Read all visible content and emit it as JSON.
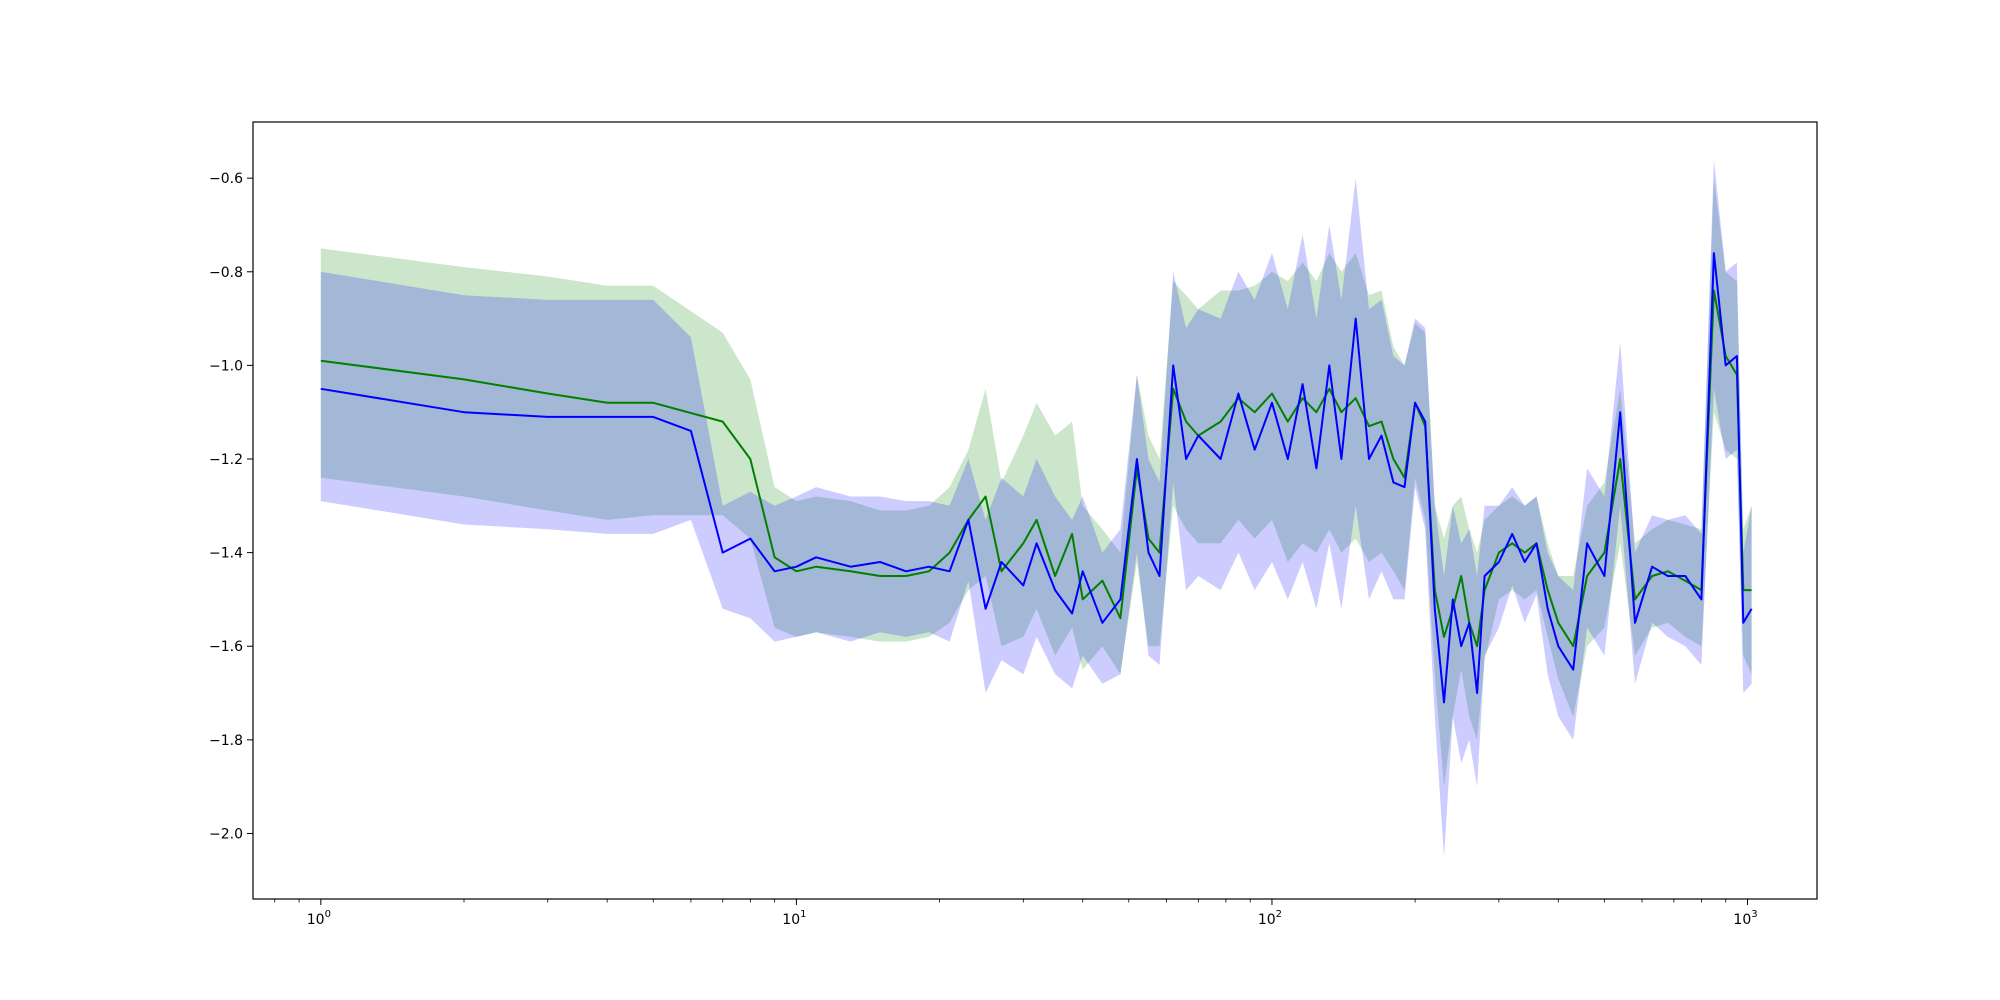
{
  "chart_data": {
    "type": "line",
    "title": "",
    "xlabel": "",
    "ylabel": "",
    "x_scale": "log",
    "xlim": [
      0.72,
      1400
    ],
    "ylim": [
      -2.14,
      -0.48
    ],
    "grid": false,
    "x_ticks": [
      {
        "value": 1,
        "label_base": "10",
        "label_exp": "0"
      },
      {
        "value": 10,
        "label_base": "10",
        "label_exp": "1"
      },
      {
        "value": 100,
        "label_base": "10",
        "label_exp": "2"
      },
      {
        "value": 1000,
        "label_base": "10",
        "label_exp": "3"
      }
    ],
    "y_ticks": [
      {
        "value": -0.6,
        "label": "−0.6"
      },
      {
        "value": -0.8,
        "label": "−0.8"
      },
      {
        "value": -1.0,
        "label": "−1.0"
      },
      {
        "value": -1.2,
        "label": "−1.2"
      },
      {
        "value": -1.4,
        "label": "−1.4"
      },
      {
        "value": -1.6,
        "label": "−1.6"
      },
      {
        "value": -1.8,
        "label": "−1.8"
      },
      {
        "value": -2.0,
        "label": "−2.0"
      }
    ],
    "series": [
      {
        "color": "#008000",
        "band_color": "#008000",
        "points": [
          [
            1,
            -0.99,
            -0.75,
            -1.24
          ],
          [
            2,
            -1.03,
            -0.79,
            -1.28
          ],
          [
            3,
            -1.06,
            -0.81,
            -1.31
          ],
          [
            4,
            -1.08,
            -0.83,
            -1.33
          ],
          [
            5,
            -1.08,
            -0.83,
            -1.32
          ],
          [
            7,
            -1.12,
            -0.93,
            -1.32
          ],
          [
            8,
            -1.2,
            -1.03,
            -1.37
          ],
          [
            9,
            -1.41,
            -1.26,
            -1.56
          ],
          [
            10,
            -1.44,
            -1.29,
            -1.58
          ],
          [
            11,
            -1.43,
            -1.28,
            -1.57
          ],
          [
            13,
            -1.44,
            -1.29,
            -1.58
          ],
          [
            15,
            -1.45,
            -1.31,
            -1.59
          ],
          [
            17,
            -1.45,
            -1.31,
            -1.59
          ],
          [
            19,
            -1.44,
            -1.3,
            -1.58
          ],
          [
            21,
            -1.4,
            -1.26,
            -1.55
          ],
          [
            23,
            -1.33,
            -1.18,
            -1.48
          ],
          [
            25,
            -1.28,
            -1.05,
            -1.45
          ],
          [
            27,
            -1.44,
            -1.25,
            -1.6
          ],
          [
            30,
            -1.38,
            -1.15,
            -1.58
          ],
          [
            32,
            -1.33,
            -1.08,
            -1.52
          ],
          [
            35,
            -1.45,
            -1.15,
            -1.62
          ],
          [
            38,
            -1.36,
            -1.12,
            -1.56
          ],
          [
            40,
            -1.5,
            -1.3,
            -1.65
          ],
          [
            44,
            -1.46,
            -1.35,
            -1.6
          ],
          [
            48,
            -1.54,
            -1.4,
            -1.66
          ],
          [
            52,
            -1.22,
            -1.02,
            -1.42
          ],
          [
            55,
            -1.37,
            -1.15,
            -1.6
          ],
          [
            58,
            -1.4,
            -1.2,
            -1.6
          ],
          [
            62,
            -1.05,
            -0.82,
            -1.3
          ],
          [
            66,
            -1.12,
            -0.85,
            -1.35
          ],
          [
            70,
            -1.15,
            -0.88,
            -1.38
          ],
          [
            78,
            -1.12,
            -0.84,
            -1.38
          ],
          [
            85,
            -1.07,
            -0.84,
            -1.33
          ],
          [
            92,
            -1.1,
            -0.83,
            -1.37
          ],
          [
            100,
            -1.06,
            -0.8,
            -1.33
          ],
          [
            108,
            -1.12,
            -0.82,
            -1.42
          ],
          [
            116,
            -1.07,
            -0.78,
            -1.38
          ],
          [
            124,
            -1.1,
            -0.82,
            -1.4
          ],
          [
            132,
            -1.05,
            -0.76,
            -1.35
          ],
          [
            140,
            -1.1,
            -0.8,
            -1.4
          ],
          [
            150,
            -1.07,
            -0.76,
            -1.37
          ],
          [
            160,
            -1.13,
            -0.85,
            -1.42
          ],
          [
            170,
            -1.12,
            -0.84,
            -1.4
          ],
          [
            180,
            -1.2,
            -0.96,
            -1.44
          ],
          [
            190,
            -1.24,
            -1.0,
            -1.48
          ],
          [
            200,
            -1.08,
            -0.91,
            -1.24
          ],
          [
            210,
            -1.13,
            -0.93,
            -1.33
          ],
          [
            220,
            -1.48,
            -1.3,
            -1.66
          ],
          [
            230,
            -1.58,
            -1.37,
            -1.9
          ],
          [
            240,
            -1.52,
            -1.3,
            -1.75
          ],
          [
            250,
            -1.45,
            -1.28,
            -1.65
          ],
          [
            260,
            -1.55,
            -1.35,
            -1.75
          ],
          [
            270,
            -1.6,
            -1.4,
            -1.8
          ],
          [
            280,
            -1.48,
            -1.33,
            -1.63
          ],
          [
            300,
            -1.4,
            -1.3,
            -1.5
          ],
          [
            320,
            -1.38,
            -1.28,
            -1.48
          ],
          [
            340,
            -1.4,
            -1.3,
            -1.5
          ],
          [
            360,
            -1.38,
            -1.28,
            -1.48
          ],
          [
            380,
            -1.48,
            -1.38,
            -1.58
          ],
          [
            400,
            -1.55,
            -1.45,
            -1.67
          ],
          [
            430,
            -1.6,
            -1.45,
            -1.75
          ],
          [
            460,
            -1.45,
            -1.3,
            -1.6
          ],
          [
            500,
            -1.4,
            -1.25,
            -1.56
          ],
          [
            540,
            -1.2,
            -1.05,
            -1.38
          ],
          [
            580,
            -1.5,
            -1.38,
            -1.62
          ],
          [
            630,
            -1.45,
            -1.35,
            -1.56
          ],
          [
            680,
            -1.44,
            -1.33,
            -1.55
          ],
          [
            740,
            -1.46,
            -1.34,
            -1.58
          ],
          [
            800,
            -1.48,
            -1.35,
            -1.6
          ],
          [
            850,
            -0.84,
            -0.6,
            -1.1
          ],
          [
            900,
            -0.98,
            -0.8,
            -1.18
          ],
          [
            950,
            -1.02,
            -0.82,
            -1.2
          ],
          [
            980,
            -1.48,
            -1.35,
            -1.62
          ],
          [
            1020,
            -1.48,
            -1.3,
            -1.66
          ]
        ]
      },
      {
        "color": "#0000ff",
        "band_color": "#0000ff",
        "points": [
          [
            1,
            -1.05,
            -0.8,
            -1.29
          ],
          [
            2,
            -1.1,
            -0.85,
            -1.34
          ],
          [
            3,
            -1.11,
            -0.86,
            -1.35
          ],
          [
            4,
            -1.11,
            -0.86,
            -1.36
          ],
          [
            5,
            -1.11,
            -0.86,
            -1.36
          ],
          [
            6,
            -1.14,
            -0.94,
            -1.33
          ],
          [
            7,
            -1.4,
            -1.3,
            -1.52
          ],
          [
            8,
            -1.37,
            -1.27,
            -1.54
          ],
          [
            9,
            -1.44,
            -1.3,
            -1.59
          ],
          [
            10,
            -1.43,
            -1.28,
            -1.58
          ],
          [
            11,
            -1.41,
            -1.26,
            -1.57
          ],
          [
            13,
            -1.43,
            -1.28,
            -1.59
          ],
          [
            15,
            -1.42,
            -1.28,
            -1.57
          ],
          [
            17,
            -1.44,
            -1.29,
            -1.58
          ],
          [
            19,
            -1.43,
            -1.29,
            -1.57
          ],
          [
            21,
            -1.44,
            -1.3,
            -1.59
          ],
          [
            23,
            -1.33,
            -1.2,
            -1.46
          ],
          [
            25,
            -1.52,
            -1.33,
            -1.7
          ],
          [
            27,
            -1.42,
            -1.24,
            -1.63
          ],
          [
            30,
            -1.47,
            -1.28,
            -1.66
          ],
          [
            32,
            -1.38,
            -1.2,
            -1.58
          ],
          [
            35,
            -1.48,
            -1.28,
            -1.66
          ],
          [
            38,
            -1.53,
            -1.33,
            -1.69
          ],
          [
            40,
            -1.44,
            -1.28,
            -1.62
          ],
          [
            44,
            -1.55,
            -1.4,
            -1.68
          ],
          [
            48,
            -1.5,
            -1.35,
            -1.66
          ],
          [
            52,
            -1.2,
            -1.02,
            -1.4
          ],
          [
            55,
            -1.4,
            -1.2,
            -1.62
          ],
          [
            58,
            -1.45,
            -1.25,
            -1.64
          ],
          [
            62,
            -1.0,
            -0.8,
            -1.25
          ],
          [
            66,
            -1.2,
            -0.92,
            -1.48
          ],
          [
            70,
            -1.15,
            -0.88,
            -1.45
          ],
          [
            78,
            -1.2,
            -0.9,
            -1.48
          ],
          [
            85,
            -1.06,
            -0.8,
            -1.4
          ],
          [
            92,
            -1.18,
            -0.86,
            -1.48
          ],
          [
            100,
            -1.08,
            -0.76,
            -1.42
          ],
          [
            108,
            -1.2,
            -0.88,
            -1.5
          ],
          [
            116,
            -1.04,
            -0.72,
            -1.42
          ],
          [
            124,
            -1.22,
            -0.9,
            -1.52
          ],
          [
            132,
            -1.0,
            -0.7,
            -1.38
          ],
          [
            140,
            -1.2,
            -0.86,
            -1.52
          ],
          [
            150,
            -0.9,
            -0.6,
            -1.3
          ],
          [
            160,
            -1.2,
            -0.88,
            -1.5
          ],
          [
            170,
            -1.15,
            -0.86,
            -1.44
          ],
          [
            180,
            -1.25,
            -0.98,
            -1.5
          ],
          [
            190,
            -1.26,
            -1.0,
            -1.5
          ],
          [
            200,
            -1.08,
            -0.9,
            -1.26
          ],
          [
            210,
            -1.12,
            -0.92,
            -1.35
          ],
          [
            220,
            -1.52,
            -1.3,
            -1.75
          ],
          [
            230,
            -1.72,
            -1.45,
            -2.05
          ],
          [
            240,
            -1.5,
            -1.3,
            -1.75
          ],
          [
            250,
            -1.6,
            -1.38,
            -1.85
          ],
          [
            260,
            -1.55,
            -1.35,
            -1.8
          ],
          [
            270,
            -1.7,
            -1.45,
            -1.9
          ],
          [
            280,
            -1.45,
            -1.3,
            -1.62
          ],
          [
            300,
            -1.42,
            -1.3,
            -1.56
          ],
          [
            320,
            -1.36,
            -1.26,
            -1.47
          ],
          [
            340,
            -1.42,
            -1.3,
            -1.55
          ],
          [
            360,
            -1.38,
            -1.28,
            -1.49
          ],
          [
            380,
            -1.52,
            -1.4,
            -1.66
          ],
          [
            400,
            -1.6,
            -1.45,
            -1.75
          ],
          [
            430,
            -1.65,
            -1.48,
            -1.8
          ],
          [
            460,
            -1.38,
            -1.22,
            -1.56
          ],
          [
            500,
            -1.45,
            -1.28,
            -1.62
          ],
          [
            540,
            -1.1,
            -0.95,
            -1.3
          ],
          [
            580,
            -1.55,
            -1.4,
            -1.68
          ],
          [
            630,
            -1.43,
            -1.32,
            -1.55
          ],
          [
            680,
            -1.45,
            -1.33,
            -1.58
          ],
          [
            740,
            -1.45,
            -1.32,
            -1.6
          ],
          [
            800,
            -1.5,
            -1.36,
            -1.64
          ],
          [
            850,
            -0.76,
            -0.56,
            -1.05
          ],
          [
            900,
            -1.0,
            -0.8,
            -1.2
          ],
          [
            950,
            -0.98,
            -0.78,
            -1.18
          ],
          [
            980,
            -1.55,
            -1.4,
            -1.7
          ],
          [
            1020,
            -1.52,
            -1.3,
            -1.68
          ]
        ]
      }
    ]
  }
}
